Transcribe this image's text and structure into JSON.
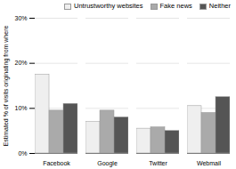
{
  "chart_data": {
    "type": "bar",
    "categories": [
      "Facebook",
      "Google",
      "Twitter",
      "Webmail"
    ],
    "series": [
      {
        "name": "Untrustworthy websites",
        "color": "#efefef",
        "values": [
          17.5,
          7.0,
          5.5,
          10.5
        ]
      },
      {
        "name": "Fake news",
        "color": "#aaaaaa",
        "values": [
          9.5,
          9.5,
          5.8,
          9.0
        ]
      },
      {
        "name": "Neither",
        "color": "#555555",
        "values": [
          11.0,
          8.0,
          5.0,
          12.5
        ]
      }
    ],
    "ylabel": "Estimated % of visits originating from where",
    "ylim": [
      0,
      30
    ],
    "yticks": [
      {
        "value": 0,
        "label": "0%"
      },
      {
        "value": 10,
        "label": "10%"
      },
      {
        "value": 20,
        "label": "20%"
      },
      {
        "value": 30,
        "label": "30%"
      }
    ],
    "grid": true,
    "legend": "upper right"
  }
}
